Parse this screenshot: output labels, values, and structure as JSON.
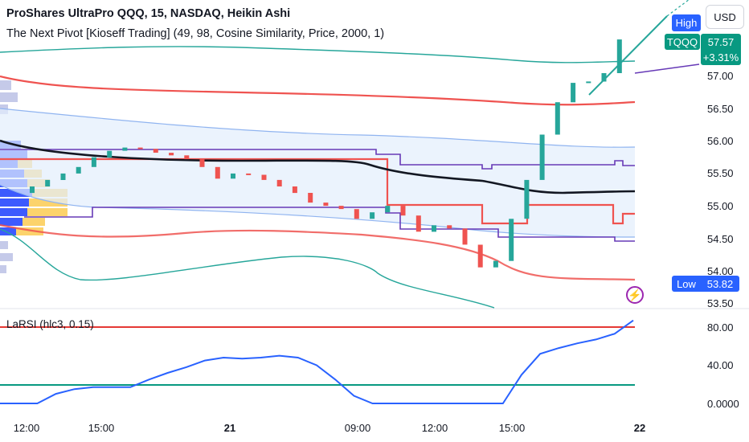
{
  "header": {
    "title": "ProShares UltraPro QQQ, 15, NASDAQ, Heikin Ashi",
    "indicator": "The Next Pivot [Kioseff Trading] (49, 98, Cosine Similarity, Price, 2000, 1)"
  },
  "currency_button": "USD",
  "price_tags": {
    "high_label": "High",
    "symbol": "TQQQ",
    "last_price": "57.57",
    "change": "+3.31%",
    "low_label": "Low",
    "low_value": "53.82"
  },
  "price_axis": [
    "57.00",
    "56.50",
    "56.00",
    "55.50",
    "55.00",
    "54.50",
    "54.00",
    "53.50"
  ],
  "rsi_panel": {
    "label": "LaRSI (hlc3, 0.15)",
    "axis": [
      "80.00",
      "40.00",
      "0.0000"
    ]
  },
  "time_axis": [
    {
      "label": "12:00",
      "bold": false
    },
    {
      "label": "15:00",
      "bold": false
    },
    {
      "label": "21",
      "bold": true
    },
    {
      "label": "09:00",
      "bold": false
    },
    {
      "label": "12:00",
      "bold": false
    },
    {
      "label": "15:00",
      "bold": false
    },
    {
      "label": "22",
      "bold": true
    }
  ],
  "colors": {
    "up": "#26a69a",
    "down": "#ef5350",
    "tag_blue": "#2962ff",
    "tag_green": "#089981",
    "pivot_purple": "#673ab7"
  },
  "chart_data": {
    "type": "candlestick",
    "price_range": [
      53.5,
      57.5
    ],
    "last_price": 57.57,
    "low": 53.82,
    "rsi": {
      "ylim": [
        0,
        100
      ],
      "levels": [
        80,
        20
      ],
      "values": [
        0,
        0,
        0,
        10,
        15,
        17,
        17,
        17,
        25,
        32,
        38,
        45,
        48,
        47,
        48,
        50,
        48,
        40,
        25,
        8,
        0,
        0,
        0,
        0,
        0,
        0,
        0,
        0,
        30,
        52,
        58,
        63,
        67,
        73,
        87
      ]
    },
    "candles": [
      {
        "o": 55.2,
        "c": 55.3
      },
      {
        "o": 55.3,
        "c": 55.4
      },
      {
        "o": 55.4,
        "c": 55.5
      },
      {
        "o": 55.5,
        "c": 55.6
      },
      {
        "o": 55.6,
        "c": 55.75
      },
      {
        "o": 55.75,
        "c": 55.85
      },
      {
        "o": 55.85,
        "c": 55.9
      },
      {
        "o": 55.9,
        "c": 55.88
      },
      {
        "o": 55.88,
        "c": 55.82
      },
      {
        "o": 55.82,
        "c": 55.78
      },
      {
        "o": 55.78,
        "c": 55.72
      },
      {
        "o": 55.72,
        "c": 55.6
      },
      {
        "o": 55.6,
        "c": 55.42
      },
      {
        "o": 55.42,
        "c": 55.5
      },
      {
        "o": 55.5,
        "c": 55.48
      },
      {
        "o": 55.48,
        "c": 55.4
      },
      {
        "o": 55.4,
        "c": 55.3
      },
      {
        "o": 55.3,
        "c": 55.2
      },
      {
        "o": 55.2,
        "c": 55.05
      },
      {
        "o": 55.05,
        "c": 55.0
      },
      {
        "o": 55.0,
        "c": 54.95
      },
      {
        "o": 54.95,
        "c": 54.8
      },
      {
        "o": 54.8,
        "c": 54.9
      },
      {
        "o": 54.9,
        "c": 55.0
      },
      {
        "o": 55.0,
        "c": 54.85
      },
      {
        "o": 54.85,
        "c": 54.6
      },
      {
        "o": 54.6,
        "c": 54.7
      },
      {
        "o": 54.7,
        "c": 54.65
      },
      {
        "o": 54.65,
        "c": 54.4
      },
      {
        "o": 54.4,
        "c": 54.05
      },
      {
        "o": 54.05,
        "c": 54.15
      },
      {
        "o": 54.15,
        "c": 54.8
      },
      {
        "o": 54.8,
        "c": 55.4
      },
      {
        "o": 55.4,
        "c": 56.1
      },
      {
        "o": 56.1,
        "c": 56.6
      },
      {
        "o": 56.6,
        "c": 56.9
      },
      {
        "o": 56.9,
        "c": 56.92
      },
      {
        "o": 56.92,
        "c": 57.05
      },
      {
        "o": 57.05,
        "c": 57.57
      }
    ]
  }
}
